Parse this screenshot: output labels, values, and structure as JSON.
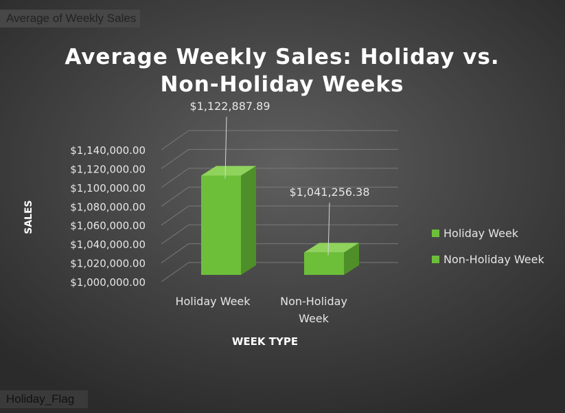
{
  "pivot": {
    "values_field": "Average of Weekly Sales",
    "axis_field": "Holiday_Flag"
  },
  "colors": {
    "bar_front": "#6dbf3a",
    "bar_side": "#4f8f2a",
    "bar_top": "#8fd35c",
    "text": "#ffffff",
    "axis_text": "#e6e6e6",
    "grid": "#7a7a7a"
  },
  "chart_data": {
    "type": "bar",
    "title": "Average Weekly Sales: Holiday vs. Non-Holiday Weeks",
    "title_lines": [
      "Average Weekly Sales: Holiday vs.",
      "Non-Holiday Weeks"
    ],
    "xlabel": "WEEK TYPE",
    "ylabel": "SALES",
    "categories": [
      "Holiday Week",
      "Non-Holiday Week"
    ],
    "category_lines": [
      [
        "Holiday Week"
      ],
      [
        "Non-Holiday",
        "Week"
      ]
    ],
    "values": [
      1122887.89,
      1041256.38
    ],
    "value_labels": [
      "$1,122,887.89",
      "$1,041,256.38"
    ],
    "ylim": [
      1000000,
      1140000
    ],
    "yticks": [
      1000000,
      1020000,
      1040000,
      1060000,
      1080000,
      1100000,
      1120000,
      1140000
    ],
    "ytick_labels": [
      "$1,000,000.00",
      "$1,020,000.00",
      "$1,040,000.00",
      "$1,060,000.00",
      "$1,080,000.00",
      "$1,100,000.00",
      "$1,120,000.00",
      "$1,140,000.00"
    ],
    "grid": true,
    "legend": {
      "position": "right",
      "entries": [
        "Holiday Week",
        "Non-Holiday Week"
      ]
    }
  }
}
